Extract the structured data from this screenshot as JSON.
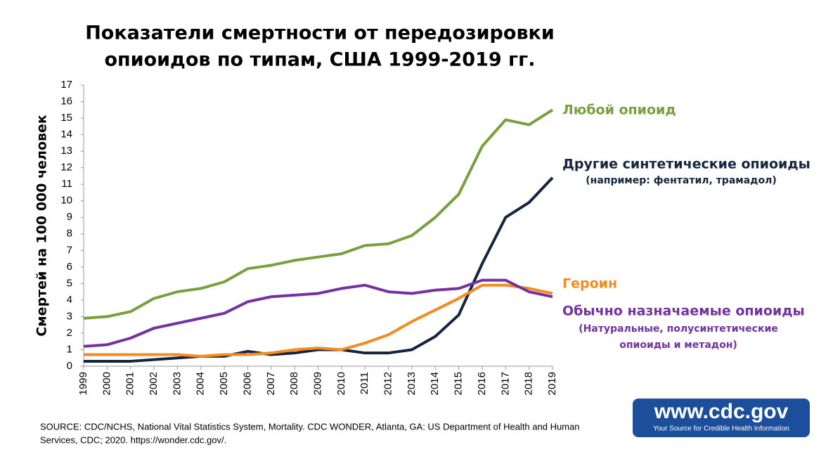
{
  "chart_data": {
    "type": "line",
    "title": [
      "Показатели смертности от передозировки",
      "опиоидов по типам, США 1999-2019 гг."
    ],
    "y_label": "Смертей на 100 000 человек",
    "categories": [
      "1999",
      "2000",
      "2001",
      "2002",
      "2003",
      "2004",
      "2005",
      "2006",
      "2007",
      "2008",
      "2009",
      "2010",
      "2011",
      "2012",
      "2013",
      "2014",
      "2015",
      "2016",
      "2017",
      "2018",
      "2019"
    ],
    "ylim": [
      0,
      17
    ],
    "yticks": [
      0,
      1,
      2,
      3,
      4,
      5,
      6,
      7,
      8,
      9,
      10,
      11,
      12,
      13,
      14,
      15,
      16,
      17
    ],
    "grid": false,
    "series": [
      {
        "name": "Любой опиоид",
        "color": "#77a13f",
        "values": [
          2.9,
          3.0,
          3.3,
          4.1,
          4.5,
          4.7,
          5.1,
          5.9,
          6.1,
          6.4,
          6.6,
          6.8,
          7.3,
          7.4,
          7.9,
          9.0,
          10.4,
          13.3,
          14.9,
          14.6,
          15.5
        ]
      },
      {
        "name": "Другие синтетические опиоиды",
        "sublabel_lines": [
          "(например: фентатил, трамадол)"
        ],
        "color": "#15243f",
        "values": [
          0.3,
          0.3,
          0.3,
          0.4,
          0.5,
          0.6,
          0.6,
          0.9,
          0.7,
          0.8,
          1.0,
          1.0,
          0.8,
          0.8,
          1.0,
          1.8,
          3.1,
          6.2,
          9.0,
          9.9,
          11.4
        ]
      },
      {
        "name": "Героин",
        "color": "#f58b1f",
        "values": [
          0.7,
          0.7,
          0.7,
          0.7,
          0.7,
          0.6,
          0.7,
          0.7,
          0.8,
          1.0,
          1.1,
          1.0,
          1.4,
          1.9,
          2.7,
          3.4,
          4.1,
          4.9,
          4.9,
          4.7,
          4.4
        ]
      },
      {
        "name": "Обычно назначаемые опиоиды",
        "sublabel_lines": [
          "(Натуральные, полусинтетические",
          "опиоиды и метадон)"
        ],
        "color": "#7331a1",
        "values": [
          1.2,
          1.3,
          1.7,
          2.3,
          2.6,
          2.9,
          3.2,
          3.9,
          4.2,
          4.3,
          4.4,
          4.7,
          4.9,
          4.5,
          4.4,
          4.6,
          4.7,
          5.2,
          5.2,
          4.5,
          4.2
        ]
      }
    ],
    "source": [
      "SOURCE: CDC/NCHS, National Vital Statistics System, Mortality. CDC WONDER, Atlanta, GA: US Department of Health and Human",
      "Services, CDC; 2020. https://wonder.cdc.gov/."
    ],
    "logo": {
      "url": "www.cdc.gov",
      "tagline": "Your Source for Credible Health Information"
    }
  }
}
